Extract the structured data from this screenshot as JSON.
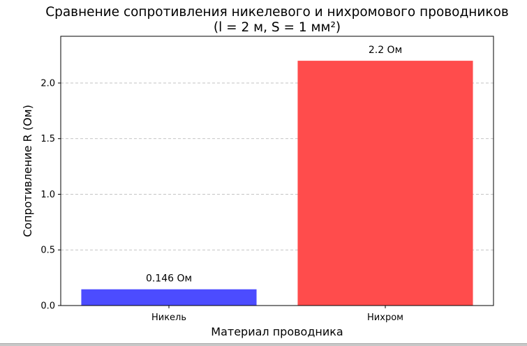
{
  "chart_data": {
    "type": "bar",
    "title_line1": "Сравнение сопротивления никелевого и нихромового проводников",
    "title_line2": "(l = 2 м, S = 1 мм²)",
    "xlabel": "Материал проводника",
    "ylabel": "Сопротивление R (Ом)",
    "categories": [
      "Никель",
      "Нихром"
    ],
    "values": [
      0.146,
      2.2
    ],
    "data_labels": [
      "0.146 Ом",
      "2.2 Ом"
    ],
    "colors": [
      "#4c4cff",
      "#ff4c4c"
    ],
    "ylim": [
      0,
      2.42
    ],
    "yticks": [
      0.0,
      0.5,
      1.0,
      1.5,
      2.0
    ],
    "ytick_labels": [
      "0.0",
      "0.5",
      "1.0",
      "1.5",
      "2.0"
    ],
    "grid": "y-dashed",
    "legend": "none"
  }
}
